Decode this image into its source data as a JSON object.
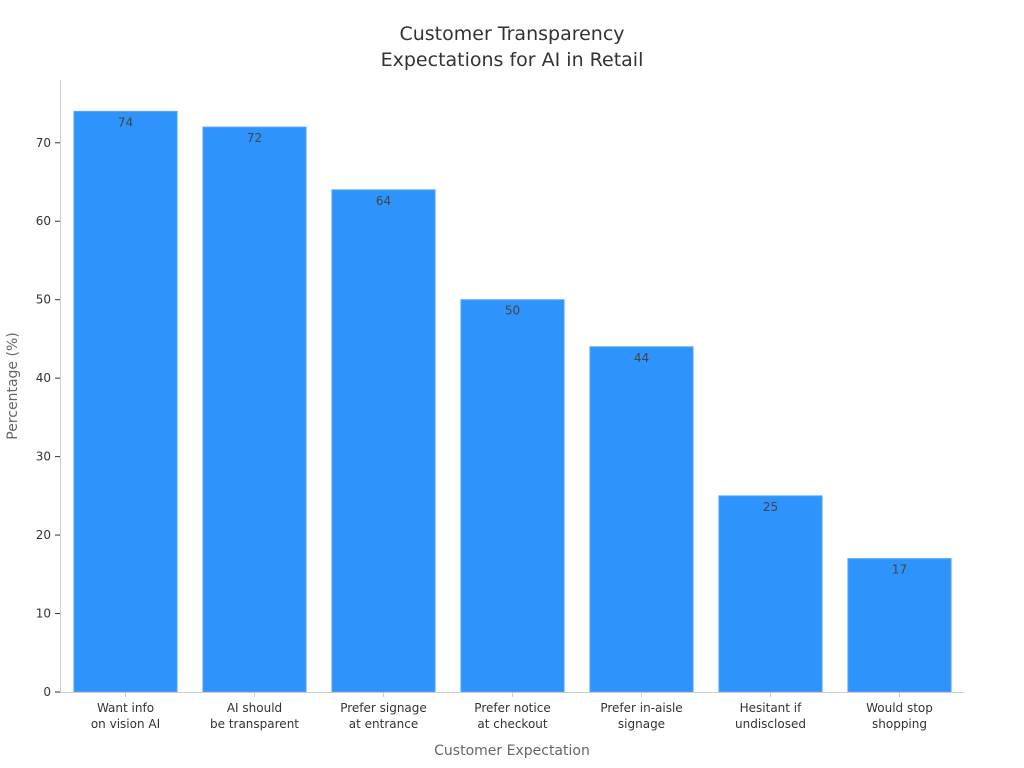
{
  "chart_data": {
    "type": "bar",
    "title": [
      "Customer Transparency",
      "Expectations for AI in Retail"
    ],
    "xlabel": "Customer Expectation",
    "ylabel": "Percentage (%)",
    "categories": [
      [
        "Want info",
        "on vision AI"
      ],
      [
        "AI should",
        "be transparent"
      ],
      [
        "Prefer signage",
        "at entrance"
      ],
      [
        "Prefer notice",
        "at checkout"
      ],
      [
        "Prefer in-aisle",
        "signage"
      ],
      [
        "Hesitant if",
        "undisclosed"
      ],
      [
        "Would stop",
        "shopping"
      ]
    ],
    "values": [
      74,
      72,
      64,
      50,
      44,
      25,
      17
    ],
    "ylim": [
      0,
      78
    ],
    "yticks": [
      0,
      10,
      20,
      30,
      40,
      50,
      60,
      70
    ],
    "grid": false,
    "bar_color": "#2E93FA",
    "bar_edge_color": "#5AAAF5"
  }
}
